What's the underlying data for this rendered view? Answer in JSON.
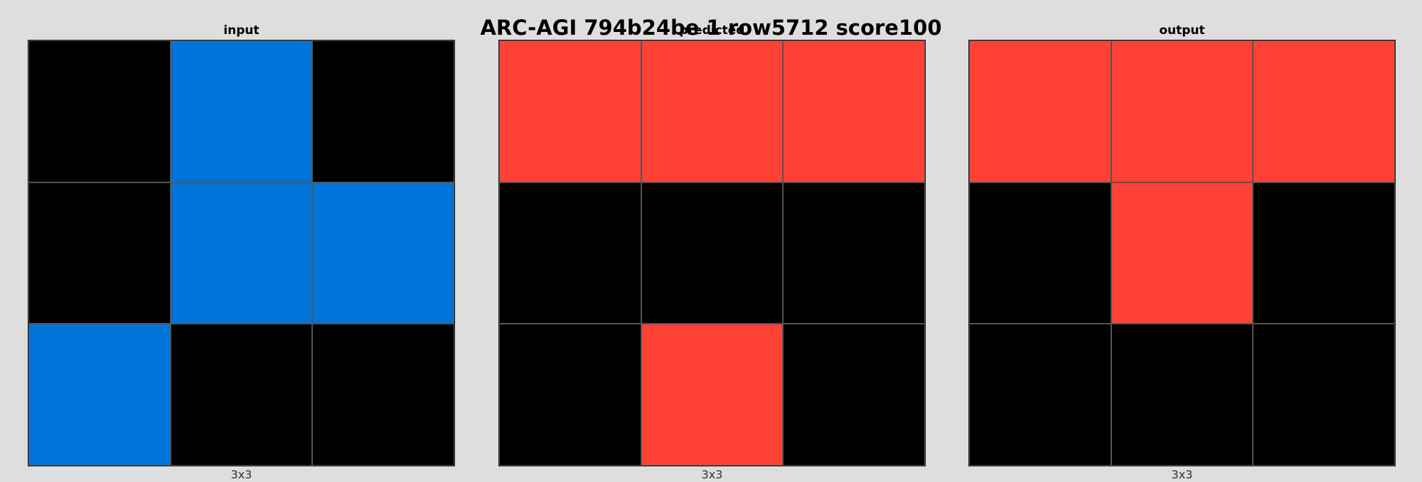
{
  "title": "ARC-AGI 794b24be 1 row5712 score100",
  "palette": {
    "0": "#000000",
    "1": "#0074d9",
    "2": "#ff4136"
  },
  "panels": [
    {
      "title": "input",
      "dims": "3x3",
      "grid": [
        [
          0,
          1,
          0
        ],
        [
          0,
          1,
          1
        ],
        [
          1,
          0,
          0
        ]
      ]
    },
    {
      "title": "predicted",
      "dims": "3x3",
      "grid": [
        [
          2,
          2,
          2
        ],
        [
          0,
          0,
          0
        ],
        [
          0,
          2,
          0
        ]
      ]
    },
    {
      "title": "output",
      "dims": "3x3",
      "grid": [
        [
          2,
          2,
          2
        ],
        [
          0,
          2,
          0
        ],
        [
          0,
          0,
          0
        ]
      ]
    }
  ]
}
